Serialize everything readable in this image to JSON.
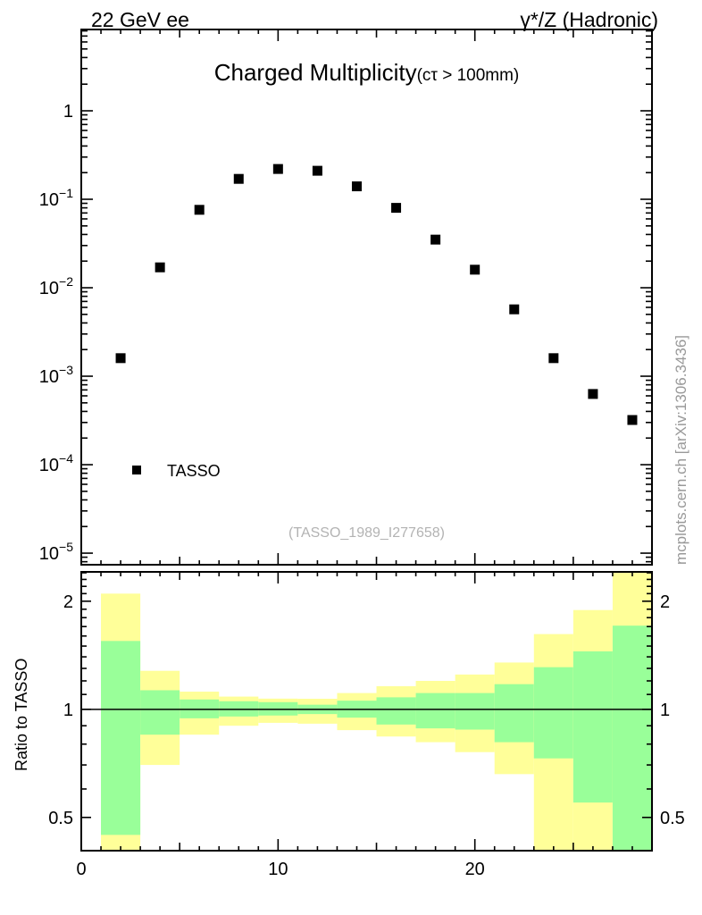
{
  "header": {
    "left": "22 GeV ee",
    "right": "γ*/Z (Hadronic)"
  },
  "main_plot": {
    "title": "Charged Multiplicity",
    "title_suffix": "(cτ > 100mm)",
    "legend": {
      "label": "TASSO",
      "marker": "filled-black-square"
    },
    "watermark": "(TASSO_1989_I277658)",
    "side_note": "mcplots.cern.ch [arXiv:1306.3436]"
  },
  "ratio_plot": {
    "ylabel": "Ratio to TASSO"
  },
  "colors": {
    "marker": "#000000",
    "band_outer": "#ffff99",
    "band_inner": "#99ff99",
    "watermark": "#b3b3b3",
    "side_note": "#999999",
    "frame": "#000000"
  },
  "chart_data": [
    {
      "type": "scatter",
      "title": "Charged Multiplicity (cτ > 100mm)",
      "series_name": "TASSO",
      "yscale": "log",
      "xlim": [
        0,
        29
      ],
      "ylim": [
        7.4e-06,
        8.3
      ],
      "x": [
        2,
        4,
        6,
        8,
        10,
        12,
        14,
        16,
        18,
        20,
        22,
        24,
        26,
        28
      ],
      "y": [
        0.0016,
        0.017,
        0.076,
        0.17,
        0.22,
        0.21,
        0.14,
        0.08,
        0.035,
        0.016,
        0.0057,
        0.0016,
        0.00063,
        0.00032
      ],
      "marker": "filled-square",
      "marker_size": 11,
      "xticks_major": [
        0,
        10,
        20
      ],
      "xtick_minor_step": 1,
      "xtick_mid_step": 5,
      "ytick_values": [
        1,
        0.1,
        0.01,
        0.001,
        0.0001,
        1e-05
      ],
      "ytick_labels": [
        {
          "base": "1",
          "exp": ""
        },
        {
          "base": "10",
          "exp": "−1"
        },
        {
          "base": "10",
          "exp": "−2"
        },
        {
          "base": "10",
          "exp": "−3"
        },
        {
          "base": "10",
          "exp": "−4"
        },
        {
          "base": "10",
          "exp": "−5"
        }
      ],
      "grid": false,
      "legend_position": "inside-left-bottom"
    },
    {
      "type": "band-ratio",
      "ylabel": "Ratio to TASSO",
      "yscale": "log",
      "xlim": [
        0,
        29
      ],
      "ylim": [
        0.404,
        2.414
      ],
      "reference_line": 1,
      "xticks_major": [
        0,
        10,
        20
      ],
      "xtick_labels": [
        "0",
        "10",
        "20"
      ],
      "xtick_minor_step": 1,
      "xtick_mid_step": 5,
      "ytick_values": [
        0.5,
        1,
        2
      ],
      "ytick_labels": [
        "0.5",
        "1",
        "2"
      ],
      "ytick_minor_from": 0.5,
      "ytick_minor_to": 2.4,
      "ytick_minor_step": 0.1,
      "bands": [
        {
          "x": [
            1,
            3
          ],
          "outer": [
            0.36,
            2.1
          ],
          "inner": [
            0.447,
            1.55
          ]
        },
        {
          "x": [
            3,
            5
          ],
          "outer": [
            0.7,
            1.28
          ],
          "inner": [
            0.85,
            1.13
          ]
        },
        {
          "x": [
            5,
            7
          ],
          "outer": [
            0.85,
            1.12
          ],
          "inner": [
            0.944,
            1.065
          ]
        },
        {
          "x": [
            7,
            9
          ],
          "outer": [
            0.9,
            1.085
          ],
          "inner": [
            0.955,
            1.053
          ]
        },
        {
          "x": [
            9,
            11
          ],
          "outer": [
            0.917,
            1.071
          ],
          "inner": [
            0.961,
            1.047
          ]
        },
        {
          "x": [
            11,
            13
          ],
          "outer": [
            0.912,
            1.07
          ],
          "inner": [
            0.97,
            1.03
          ]
        },
        {
          "x": [
            13,
            15
          ],
          "outer": [
            0.875,
            1.11
          ],
          "inner": [
            0.948,
            1.057
          ]
        },
        {
          "x": [
            15,
            17
          ],
          "outer": [
            0.84,
            1.16
          ],
          "inner": [
            0.907,
            1.08
          ]
        },
        {
          "x": [
            17,
            19
          ],
          "outer": [
            0.81,
            1.2
          ],
          "inner": [
            0.885,
            1.11
          ]
        },
        {
          "x": [
            19,
            21
          ],
          "outer": [
            0.76,
            1.25
          ],
          "inner": [
            0.878,
            1.11
          ]
        },
        {
          "x": [
            21,
            23
          ],
          "outer": [
            0.66,
            1.35
          ],
          "inner": [
            0.81,
            1.175
          ]
        },
        {
          "x": [
            23,
            25
          ],
          "outer": [
            0.36,
            1.62
          ],
          "inner": [
            0.73,
            1.31
          ]
        },
        {
          "x": [
            25,
            27
          ],
          "outer": [
            0.36,
            1.89
          ],
          "inner": [
            0.55,
            1.45
          ]
        },
        {
          "x": [
            27,
            29
          ],
          "outer": [
            0.36,
            2.5
          ],
          "inner": [
            0.36,
            1.71
          ]
        }
      ]
    }
  ]
}
